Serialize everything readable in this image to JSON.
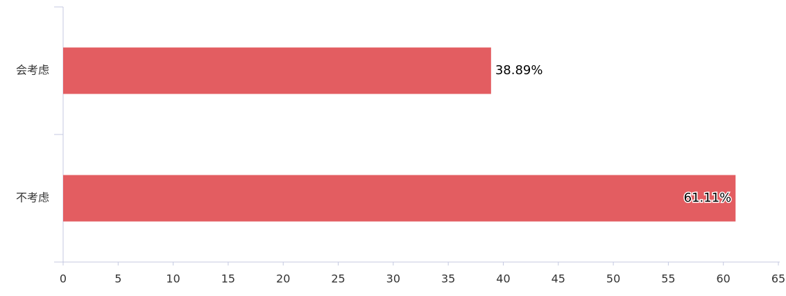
{
  "chart_data": {
    "type": "hbar",
    "categories": [
      "会考虑",
      "不考虑"
    ],
    "values": [
      38.89,
      61.11
    ],
    "value_labels": [
      "38.89%",
      "61.11%"
    ],
    "color": "#e35d61",
    "xlim": [
      0,
      65
    ],
    "xticks": [
      0,
      5,
      10,
      15,
      20,
      25,
      30,
      35,
      40,
      45,
      50,
      55,
      60,
      65
    ]
  }
}
